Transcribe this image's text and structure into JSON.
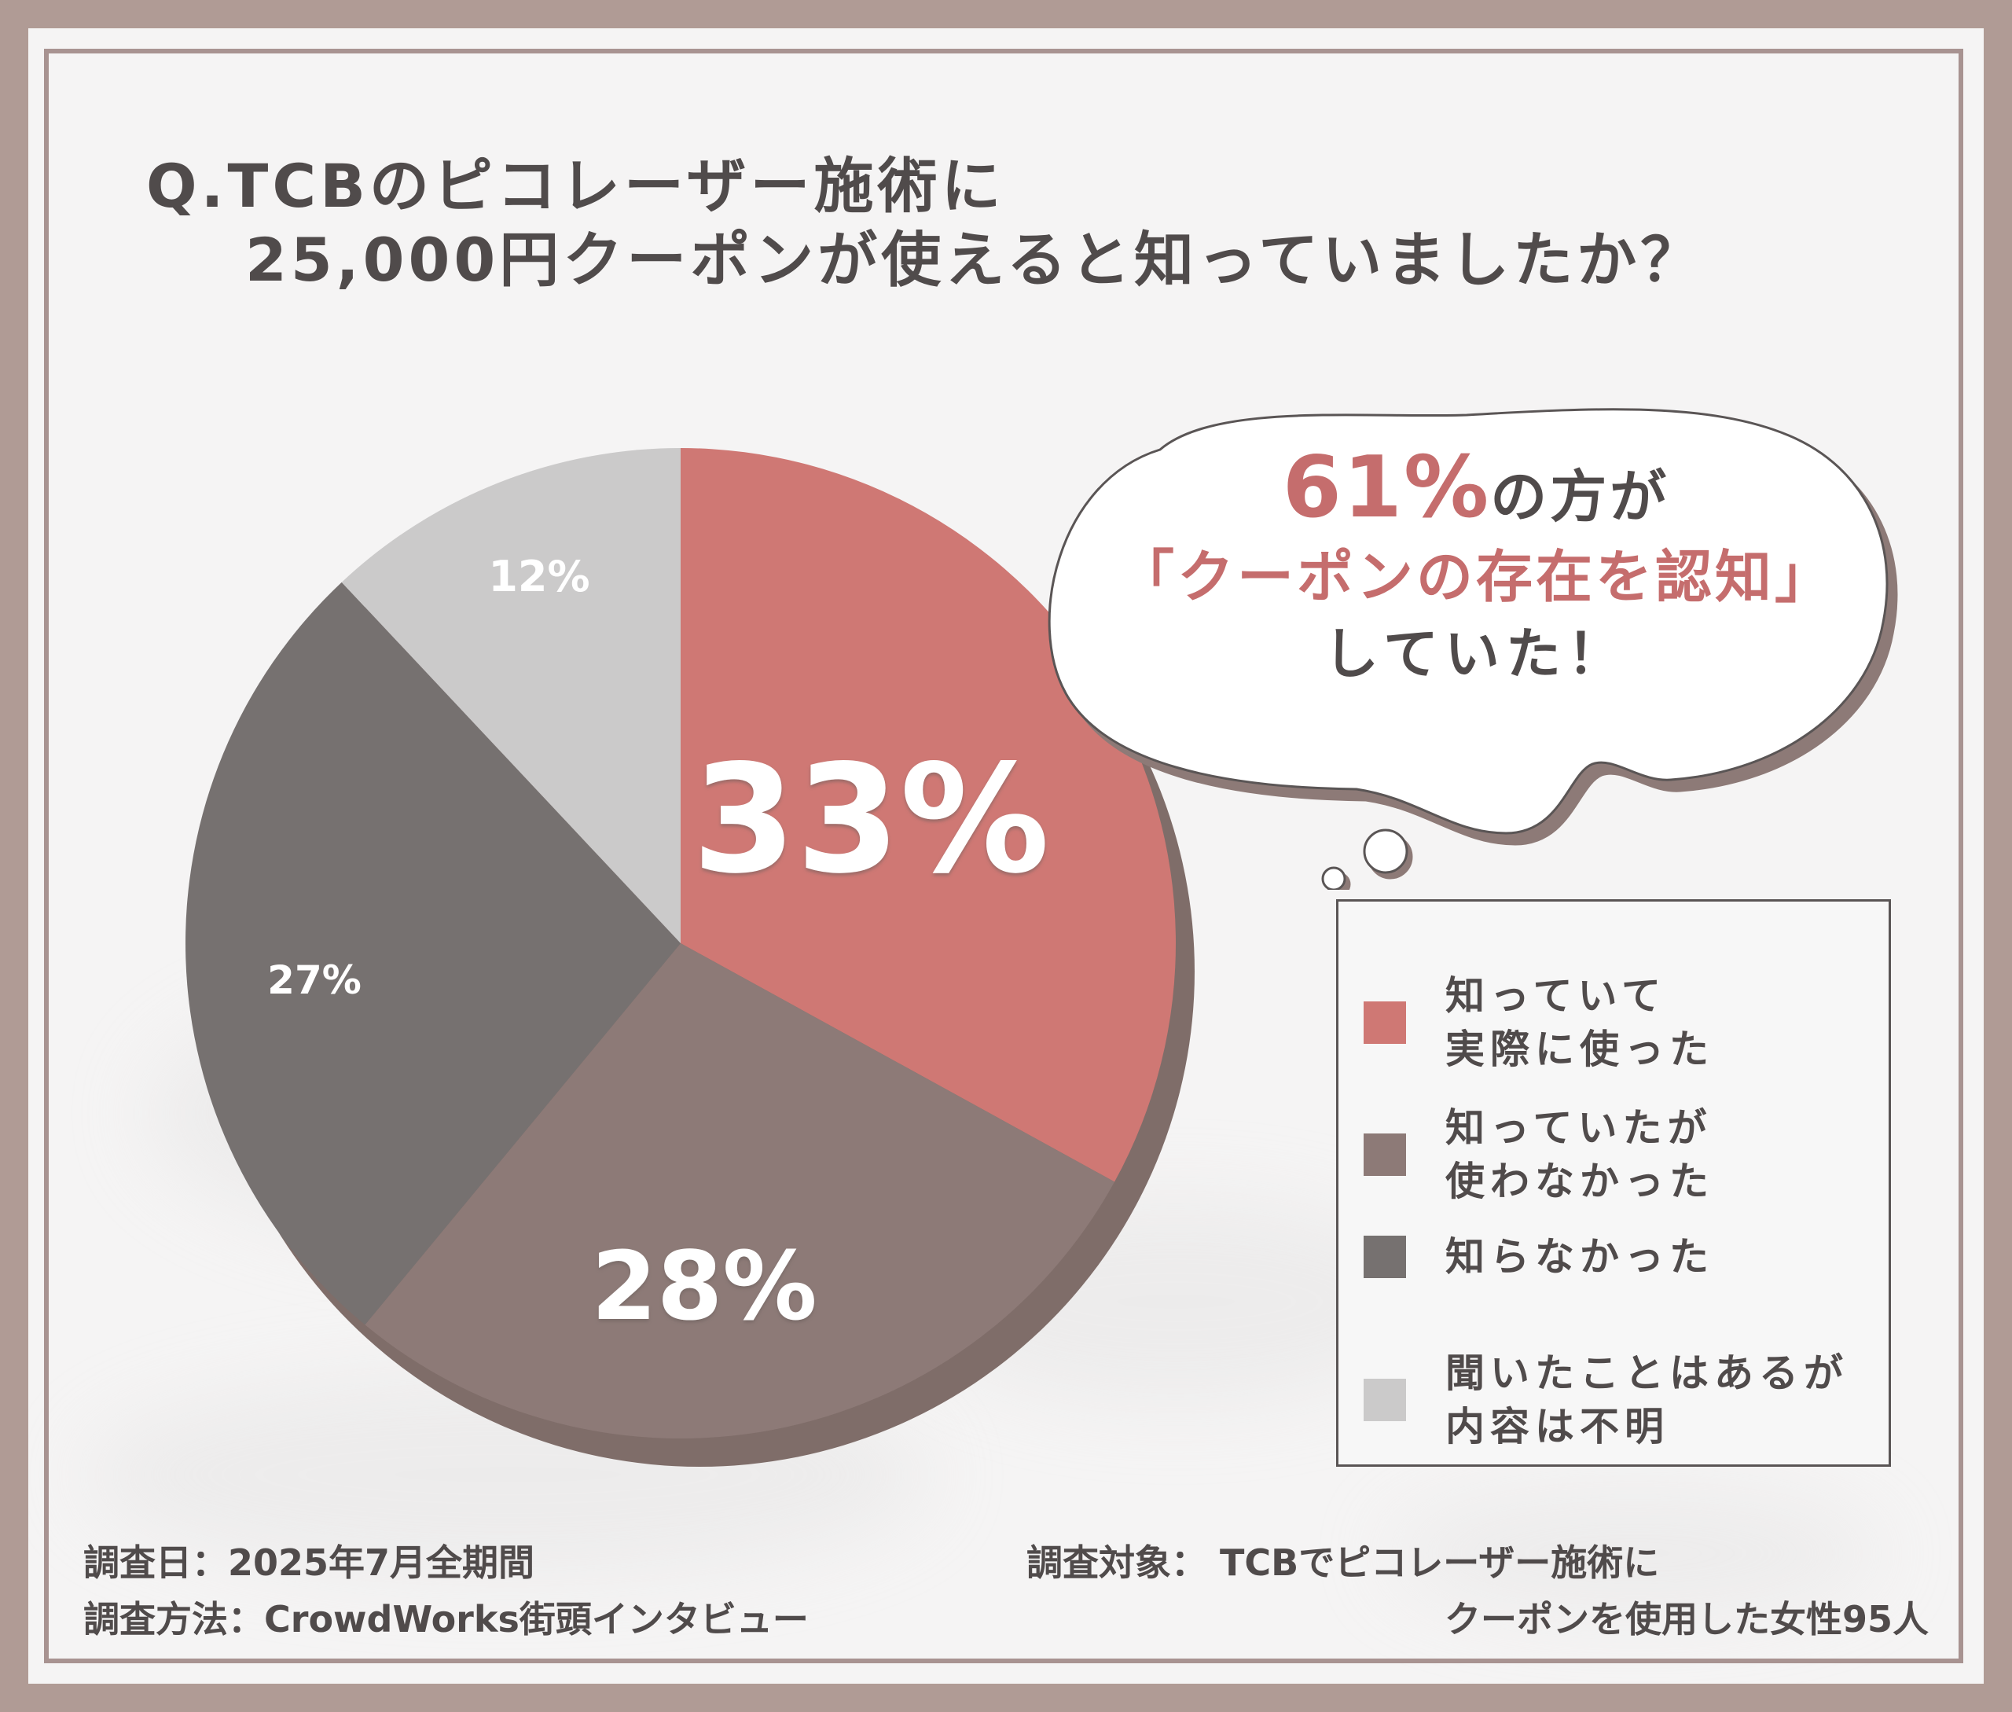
{
  "title": {
    "line1": "Q.TCBのピコレーザー施術に",
    "line2": "25,000円クーポンが使えると知っていましたか？"
  },
  "callout": {
    "percent": "61%",
    "line1_tail": "の方が",
    "line2": "「クーポンの存在を認知」",
    "line3": "していた！"
  },
  "colors": {
    "background": "#b09b95",
    "frame": "#f5f4f4",
    "slice1": "#cf7874",
    "slice2": "#8d7a77",
    "slice3": "#767170",
    "slice4": "#cbcaca",
    "pie_shadow": "#7f6d69"
  },
  "chart_data": {
    "type": "pie",
    "categories": [
      "知っていて実際に使った",
      "知っていたが使わなかった",
      "知らなかった",
      "聞いたことはあるが内容は不明"
    ],
    "values": [
      33,
      28,
      27,
      12
    ],
    "value_labels": [
      "33%",
      "28%",
      "27%",
      "12%"
    ],
    "legend": {
      "placement": "right",
      "items": [
        {
          "line1": "知っていて",
          "line2": "実際に使った",
          "color": "#cf7874"
        },
        {
          "line1": "知っていたが",
          "line2": "使わなかった",
          "color": "#8d7a77"
        },
        {
          "line1": "知らなかった",
          "line2": "",
          "color": "#767170"
        },
        {
          "line1": "聞いたことはあるが",
          "line2": "内容は不明",
          "color": "#cbcaca"
        }
      ]
    }
  },
  "footer": {
    "survey_date_label": "調査日：",
    "survey_date_value": "2025年7月全期間",
    "survey_method_label": "調査方法：",
    "survey_method_value": "CrowdWorks街頭インタビュー",
    "survey_target_label": "調査対象：",
    "survey_target_line1": "TCBでピコレーザー施術に",
    "survey_target_line2": "クーポンを使用した女性95人"
  }
}
